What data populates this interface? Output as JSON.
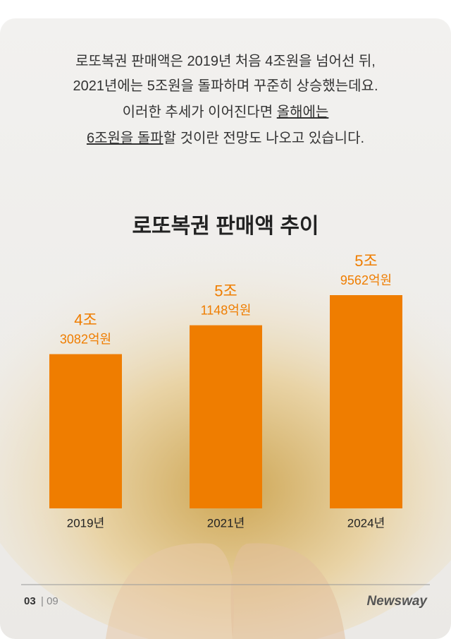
{
  "intro": [
    [
      "로또복권 판매액은 2019년 처음 4조원을 넘어선 뒤,"
    ],
    [
      "2021년에는 5조원을 돌파하며 꾸준히 상승했는데요."
    ],
    [
      "이러한 추세가 이어진다면 ",
      "올해에는"
    ],
    [
      "6조원을 돌파",
      "할 것이란 전망도 나오고 있습니다."
    ]
  ],
  "chart_data": {
    "type": "bar",
    "title": "로또복권 판매액 추이",
    "categories": [
      "2019년",
      "2021년",
      "2024년"
    ],
    "values": [
      43082,
      51148,
      59562
    ],
    "value_labels": [
      [
        "4조",
        "3082억원"
      ],
      [
        "5조",
        "1148억원"
      ],
      [
        "5조",
        "9562억원"
      ]
    ],
    "color": "#ef7d00"
  },
  "footer": {
    "page": "03",
    "total": "| 09",
    "logo": "Newsway"
  }
}
